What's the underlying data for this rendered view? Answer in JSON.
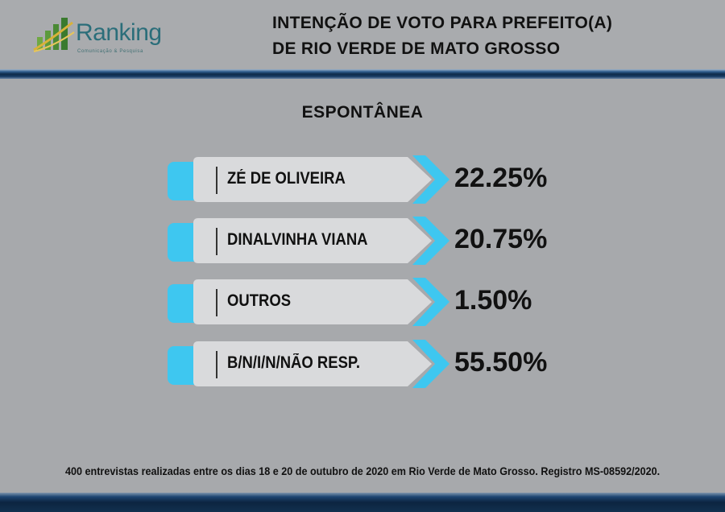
{
  "logo": {
    "name": "Ranking",
    "tagline": "Comunicação & Pesquisa"
  },
  "header": {
    "title_line1": "INTENÇÃO DE VOTO PARA PREFEITO(A)",
    "title_line2": "DE RIO VERDE DE MATO GROSSO"
  },
  "colors": {
    "background": "#a7a9ac",
    "accent_cyan": "#3ec7f0",
    "bar_fill": "#d9dadc",
    "stripe_navy": "#0f2b4a"
  },
  "chart_data": {
    "type": "bar",
    "subtitle": "ESPONTÂNEA",
    "categories": [
      "ZÉ DE OLIVEIRA",
      "DINALVINHA VIANA",
      "OUTROS",
      "B/N/I/N/NÃO RESP."
    ],
    "values": [
      22.25,
      20.75,
      1.5,
      55.5
    ],
    "value_labels": [
      "22.25%",
      "20.75%",
      "1.50%",
      "55.50%"
    ],
    "unit": "%"
  },
  "footer": {
    "note": "400 entrevistas realizadas entre os dias 18 e 20 de outubro de 2020 em Rio Verde de Mato Grosso. Registro MS-08592/2020."
  }
}
